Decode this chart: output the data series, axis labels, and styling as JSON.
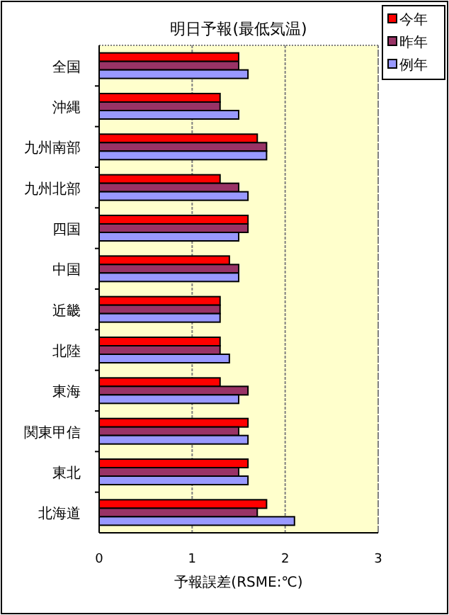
{
  "chart_data": {
    "type": "bar",
    "orientation": "horizontal",
    "title": "明日予報(最低気温)",
    "xlabel": "予報誤差(RSME:℃)",
    "categories": [
      "全国",
      "沖縄",
      "九州南部",
      "九州北部",
      "四国",
      "中国",
      "近畿",
      "北陸",
      "東海",
      "関東甲信",
      "東北",
      "北海道"
    ],
    "series": [
      {
        "name": "今年",
        "color": "#ff0000",
        "values": [
          1.5,
          1.3,
          1.7,
          1.3,
          1.6,
          1.4,
          1.3,
          1.3,
          1.3,
          1.6,
          1.6,
          1.8
        ]
      },
      {
        "name": "昨年",
        "color": "#993366",
        "values": [
          1.5,
          1.3,
          1.8,
          1.5,
          1.6,
          1.5,
          1.3,
          1.3,
          1.6,
          1.5,
          1.5,
          1.7
        ]
      },
      {
        "name": "例年",
        "color": "#9999ff",
        "values": [
          1.6,
          1.5,
          1.8,
          1.6,
          1.5,
          1.5,
          1.3,
          1.4,
          1.5,
          1.6,
          1.6,
          2.1
        ]
      }
    ],
    "xlim": [
      0,
      3
    ],
    "xticks": [
      0,
      1,
      2,
      3
    ],
    "grid": "x",
    "legend": "top right"
  }
}
